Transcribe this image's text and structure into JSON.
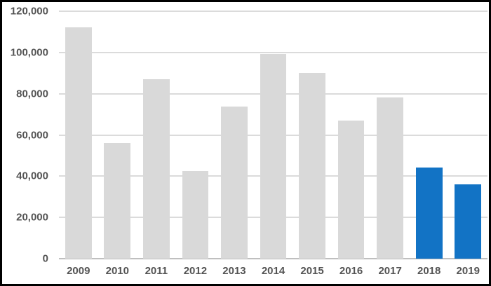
{
  "chart_data": {
    "type": "bar",
    "title": "",
    "xlabel": "",
    "ylabel": "",
    "categories": [
      "2009",
      "2010",
      "2011",
      "2012",
      "2013",
      "2014",
      "2015",
      "2016",
      "2017",
      "2018",
      "2019"
    ],
    "values": [
      112200,
      56000,
      87200,
      42500,
      73700,
      99100,
      90200,
      67000,
      78100,
      44300,
      36200
    ],
    "highlight_categories": [
      "2018",
      "2019"
    ],
    "ylim": [
      0,
      120000
    ],
    "yticks": [
      0,
      20000,
      40000,
      60000,
      80000,
      100000,
      120000
    ],
    "ytick_labels": [
      "0",
      "20,000",
      "40,000",
      "60,000",
      "80,000",
      "100,000",
      "120,000"
    ],
    "grid": "horizontal",
    "legend_position": "none",
    "colors": {
      "bar_default": "#D9D9D9",
      "bar_highlight": "#1273C5",
      "gridline": "#DBDBDB",
      "axis_line": "#BFBFBF",
      "tick_label": "#545454",
      "frame_border": "#000000",
      "background": "#FFFFFF"
    }
  }
}
